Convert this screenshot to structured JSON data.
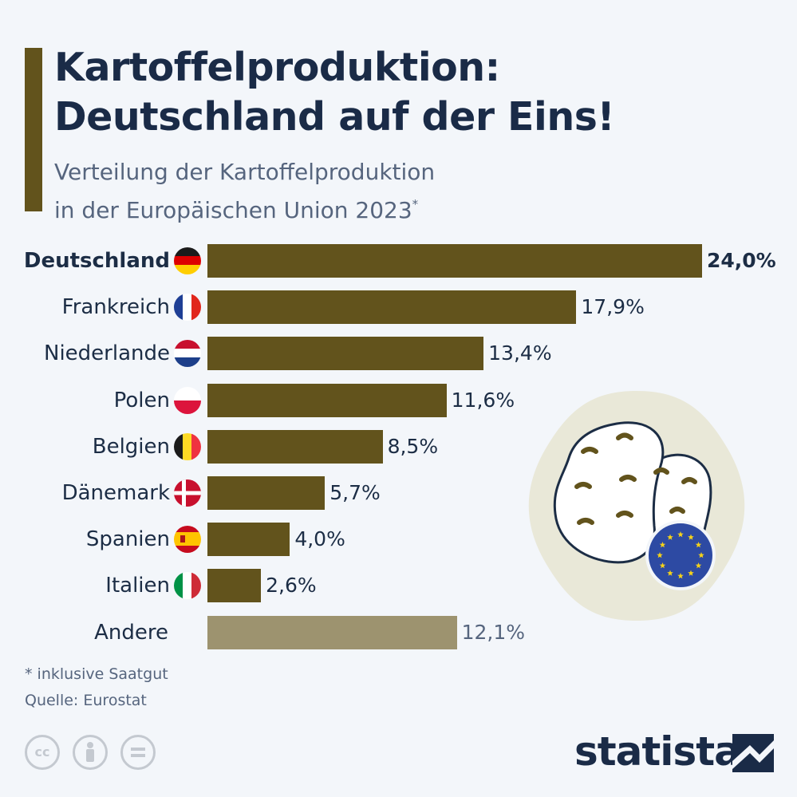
{
  "header": {
    "title_line1": "Kartoffelproduktion:",
    "title_line2": "Deutschland auf der Eins!",
    "subtitle_line1": "Verteilung der Kartoffelproduktion",
    "subtitle_line2": "in der Europäischen Union 2023",
    "subtitle_mark": "*"
  },
  "chart_data": {
    "type": "bar",
    "orientation": "horizontal",
    "unit": "%",
    "categories": [
      "Deutschland",
      "Frankreich",
      "Niederlande",
      "Polen",
      "Belgien",
      "Dänemark",
      "Spanien",
      "Italien",
      "Andere"
    ],
    "values": [
      24.0,
      17.9,
      13.4,
      11.6,
      8.5,
      5.7,
      4.0,
      2.6,
      12.1
    ],
    "value_labels": [
      "24,0%",
      "17,9%",
      "13,4%",
      "11,6%",
      "8,5%",
      "5,7%",
      "4,0%",
      "2,6%",
      "12,1%"
    ],
    "flags": [
      "flag-germany-icon",
      "flag-france-icon",
      "flag-netherlands-icon",
      "flag-poland-icon",
      "flag-belgium-icon",
      "flag-denmark-icon",
      "flag-spain-icon",
      "flag-italy-icon",
      null
    ],
    "highlight": "Deutschland",
    "colors": {
      "bar": "#62531c",
      "other": "#9d936f"
    },
    "xlim": [
      0,
      24.0
    ]
  },
  "footer": {
    "footnote": "* inklusive Saatgut",
    "source": "Quelle: Eurostat",
    "cc_icons": [
      "cc-icon",
      "by-icon",
      "nd-icon"
    ],
    "brand": "statista"
  },
  "illustration": {
    "icons": [
      "potato-icon",
      "eu-flag-icon"
    ]
  }
}
